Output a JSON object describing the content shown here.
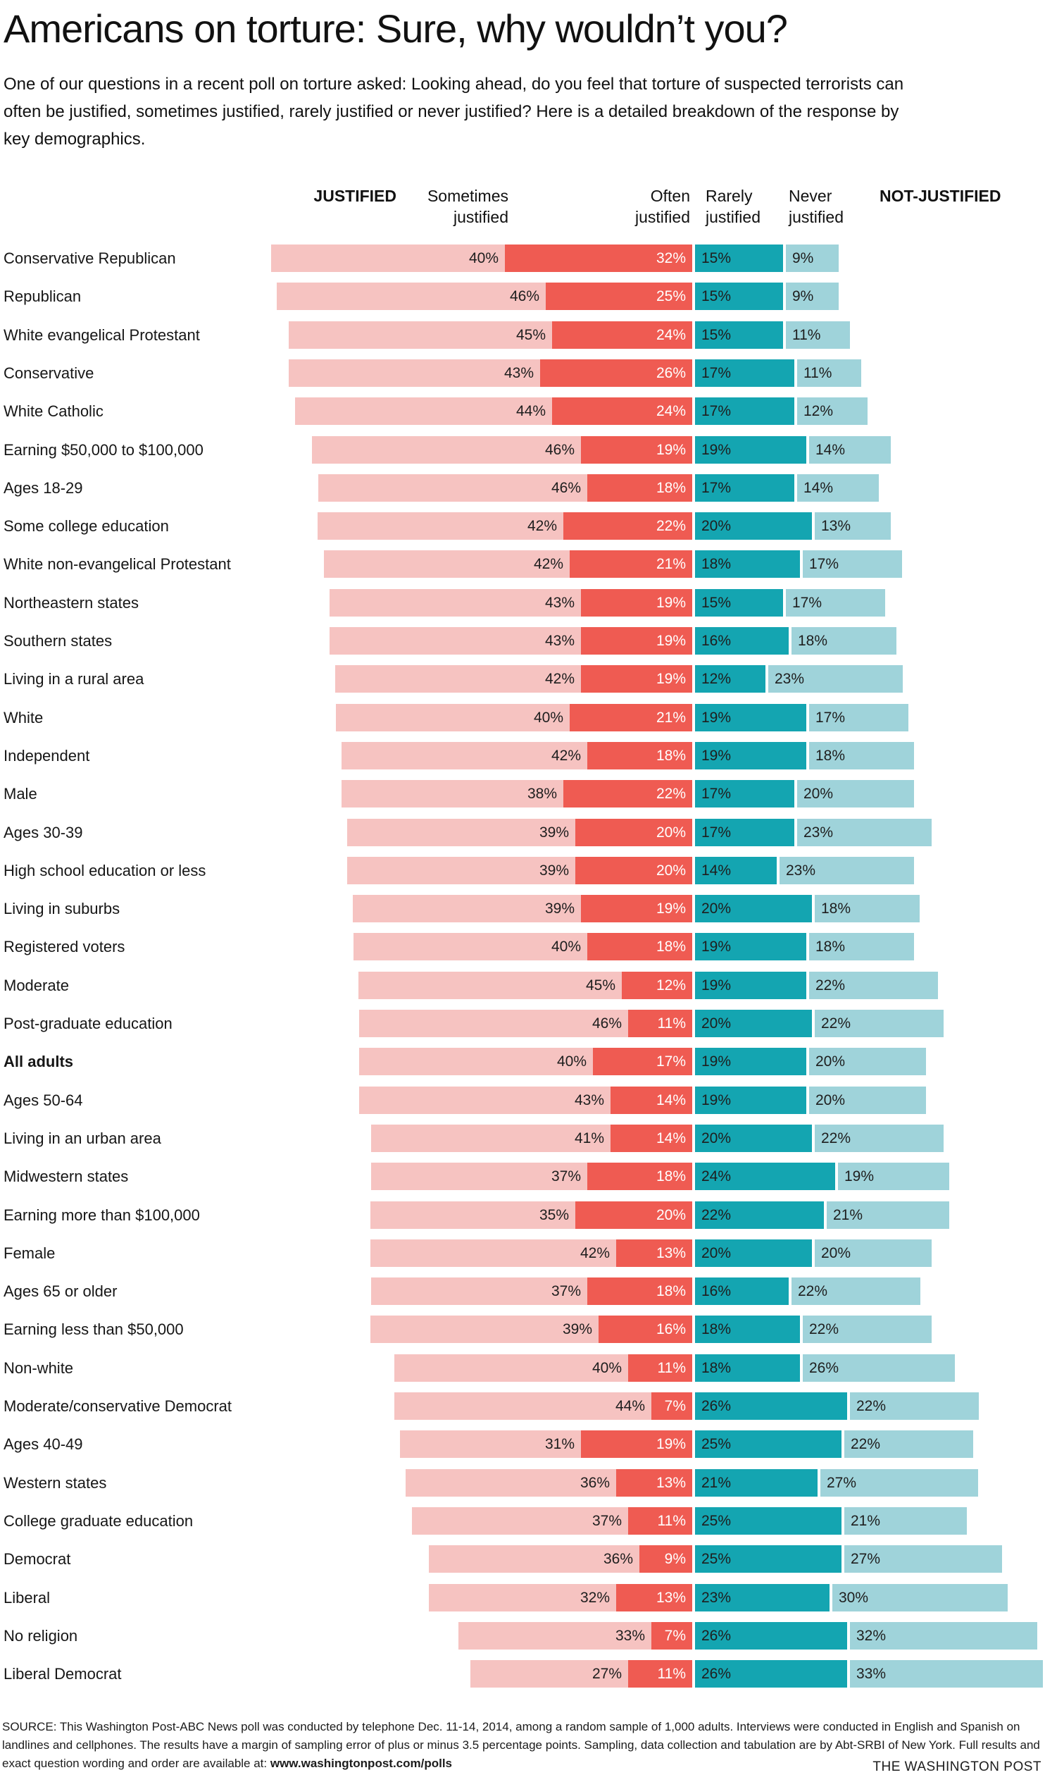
{
  "header": {
    "title": "Americans on torture: Sure, why wouldn’t you?",
    "intro": "One of our questions in a recent poll on torture asked: Looking ahead, do you feel that torture of suspected terrorists can often be justified, sometimes justified, rarely justified or never justified? Here is a detailed breakdown of the response by key demographics."
  },
  "columns": {
    "justified": "JUSTIFIED",
    "sometimes": "Sometimes justified",
    "often": "Often justified",
    "rarely": "Rarely justified",
    "never": "Never justified",
    "not_justified": "NOT-JUSTIFIED"
  },
  "colors": {
    "sometimes": "#f6c3c1",
    "often": "#ef5b52",
    "rarely": "#14a5b1",
    "never": "#9fd3da",
    "value_text_dark": "#1e1e1e",
    "value_text_light": "#ffffff"
  },
  "chart_data": {
    "type": "bar",
    "subtype": "diverging-stacked-horizontal",
    "unit": "%",
    "series_order": [
      "Sometimes justified",
      "Often justified",
      "Rarely justified",
      "Never justified"
    ],
    "layout": {
      "diverging_center_between": [
        "Often justified",
        "Rarely justified"
      ],
      "justified_side": "left",
      "not_justified_side": "right",
      "grid": false,
      "value_labels": "inside segments"
    },
    "rows": [
      {
        "label": "Conservative Republican",
        "bold": false,
        "values": [
          40,
          32,
          15,
          9
        ]
      },
      {
        "label": "Republican",
        "bold": false,
        "values": [
          46,
          25,
          15,
          9
        ]
      },
      {
        "label": "White evangelical Protestant",
        "bold": false,
        "values": [
          45,
          24,
          15,
          11
        ]
      },
      {
        "label": "Conservative",
        "bold": false,
        "values": [
          43,
          26,
          17,
          11
        ]
      },
      {
        "label": "White Catholic",
        "bold": false,
        "values": [
          44,
          24,
          17,
          12
        ]
      },
      {
        "label": "Earning $50,000 to $100,000",
        "bold": false,
        "values": [
          46,
          19,
          19,
          14
        ]
      },
      {
        "label": "Ages 18-29",
        "bold": false,
        "values": [
          46,
          18,
          17,
          14
        ]
      },
      {
        "label": "Some college education",
        "bold": false,
        "values": [
          42,
          22,
          20,
          13
        ]
      },
      {
        "label": "White non-evangelical Protestant",
        "bold": false,
        "values": [
          42,
          21,
          18,
          17
        ]
      },
      {
        "label": "Northeastern states",
        "bold": false,
        "values": [
          43,
          19,
          15,
          17
        ]
      },
      {
        "label": "Southern states",
        "bold": false,
        "values": [
          43,
          19,
          16,
          18
        ]
      },
      {
        "label": "Living in a rural area",
        "bold": false,
        "values": [
          42,
          19,
          12,
          23
        ]
      },
      {
        "label": "White",
        "bold": false,
        "values": [
          40,
          21,
          19,
          17
        ]
      },
      {
        "label": "Independent",
        "bold": false,
        "values": [
          42,
          18,
          19,
          18
        ]
      },
      {
        "label": "Male",
        "bold": false,
        "values": [
          38,
          22,
          17,
          20
        ]
      },
      {
        "label": "Ages 30-39",
        "bold": false,
        "values": [
          39,
          20,
          17,
          23
        ]
      },
      {
        "label": "High school education or less",
        "bold": false,
        "values": [
          39,
          20,
          14,
          23
        ]
      },
      {
        "label": "Living in suburbs",
        "bold": false,
        "values": [
          39,
          19,
          20,
          18
        ]
      },
      {
        "label": "Registered voters",
        "bold": false,
        "values": [
          40,
          18,
          19,
          18
        ]
      },
      {
        "label": "Moderate",
        "bold": false,
        "values": [
          45,
          12,
          19,
          22
        ]
      },
      {
        "label": "Post-graduate education",
        "bold": false,
        "values": [
          46,
          11,
          20,
          22
        ]
      },
      {
        "label": "All adults",
        "bold": true,
        "values": [
          40,
          17,
          19,
          20
        ]
      },
      {
        "label": "Ages 50-64",
        "bold": false,
        "values": [
          43,
          14,
          19,
          20
        ]
      },
      {
        "label": "Living in an urban area",
        "bold": false,
        "values": [
          41,
          14,
          20,
          22
        ]
      },
      {
        "label": "Midwestern states",
        "bold": false,
        "values": [
          37,
          18,
          24,
          19
        ]
      },
      {
        "label": "Earning more than $100,000",
        "bold": false,
        "values": [
          35,
          20,
          22,
          21
        ]
      },
      {
        "label": "Female",
        "bold": false,
        "values": [
          42,
          13,
          20,
          20
        ]
      },
      {
        "label": "Ages 65 or older",
        "bold": false,
        "values": [
          37,
          18,
          16,
          22
        ]
      },
      {
        "label": "Earning less than $50,000",
        "bold": false,
        "values": [
          39,
          16,
          18,
          22
        ]
      },
      {
        "label": "Non-white",
        "bold": false,
        "values": [
          40,
          11,
          18,
          26
        ]
      },
      {
        "label": "Moderate/conservative Democrat",
        "bold": false,
        "values": [
          44,
          7,
          26,
          22
        ]
      },
      {
        "label": "Ages 40-49",
        "bold": false,
        "values": [
          31,
          19,
          25,
          22
        ]
      },
      {
        "label": "Western states",
        "bold": false,
        "values": [
          36,
          13,
          21,
          27
        ]
      },
      {
        "label": "College graduate education",
        "bold": false,
        "values": [
          37,
          11,
          25,
          21
        ]
      },
      {
        "label": "Democrat",
        "bold": false,
        "values": [
          36,
          9,
          25,
          27
        ]
      },
      {
        "label": "Liberal",
        "bold": false,
        "values": [
          32,
          13,
          23,
          30
        ]
      },
      {
        "label": "No religion",
        "bold": false,
        "values": [
          33,
          7,
          26,
          32
        ]
      },
      {
        "label": "Liberal Democrat",
        "bold": false,
        "values": [
          27,
          11,
          26,
          33
        ]
      }
    ]
  },
  "footer": {
    "source_prefix": "SOURCE: This Washington Post-ABC News poll was conducted by telephone Dec. 11-14, 2014, among a random sample of 1,000 adults. Interviews were conducted in English and Spanish on landlines and cellphones. The results have a margin of sampling error of plus or minus 3.5 percentage points. Sampling, data collection and tabulation are by Abt-SRBI of New York. Full results and exact question wording and order are available at: ",
    "source_link": "www.washingtonpost.com/polls",
    "credit": "THE WASHINGTON POST"
  }
}
